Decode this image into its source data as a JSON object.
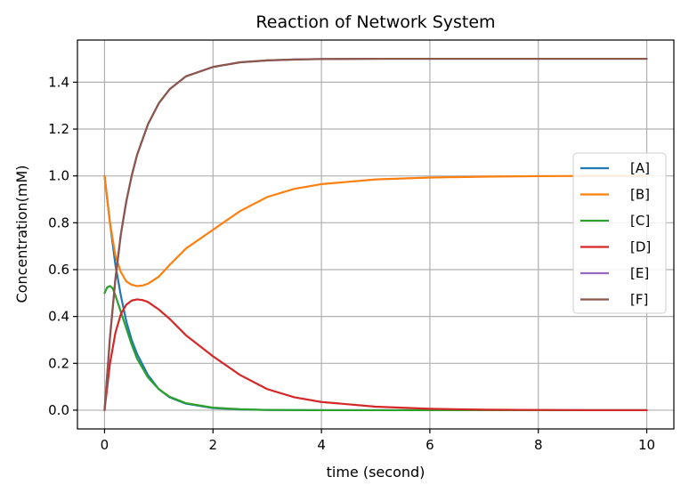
{
  "chart_data": {
    "type": "line",
    "title": "Reaction of Network System",
    "xlabel": "time (second)",
    "ylabel": "Concentration(mM)",
    "xlim": [
      -0.5,
      10.5
    ],
    "ylim": [
      -0.08,
      1.58
    ],
    "xticks": [
      0,
      2,
      4,
      6,
      8,
      10
    ],
    "xtick_labels": [
      "0",
      "2",
      "4",
      "6",
      "8",
      "10"
    ],
    "yticks": [
      0.0,
      0.2,
      0.4,
      0.6,
      0.8,
      1.0,
      1.2,
      1.4
    ],
    "ytick_labels": [
      "0.0",
      "0.2",
      "0.4",
      "0.6",
      "0.8",
      "1.0",
      "1.2",
      "1.4"
    ],
    "grid": true,
    "legend_position": "center-right",
    "series": [
      {
        "name": "[A]",
        "color": "#1f77b4",
        "x": [
          0,
          0.1,
          0.2,
          0.3,
          0.4,
          0.5,
          0.6,
          0.8,
          1.0,
          1.2,
          1.5,
          2.0,
          2.5,
          3.0,
          4.0,
          5.0,
          6.0,
          7.0,
          8.0,
          9.0,
          10.0
        ],
        "y": [
          1.0,
          0.8,
          0.62,
          0.49,
          0.38,
          0.3,
          0.24,
          0.15,
          0.09,
          0.055,
          0.028,
          0.009,
          0.003,
          0.001,
          0.0,
          0.0,
          0.0,
          0.0,
          0.0,
          0.0,
          0.0
        ]
      },
      {
        "name": "[B]",
        "color": "#ff7f0e",
        "x": [
          0,
          0.1,
          0.2,
          0.3,
          0.4,
          0.5,
          0.6,
          0.7,
          0.8,
          1.0,
          1.2,
          1.5,
          2.0,
          2.5,
          3.0,
          3.5,
          4.0,
          5.0,
          6.0,
          7.0,
          8.0,
          9.0,
          10.0
        ],
        "y": [
          1.0,
          0.8,
          0.66,
          0.59,
          0.55,
          0.535,
          0.53,
          0.532,
          0.54,
          0.57,
          0.62,
          0.69,
          0.77,
          0.85,
          0.91,
          0.945,
          0.965,
          0.985,
          0.993,
          0.997,
          0.999,
          1.0,
          1.0
        ]
      },
      {
        "name": "[C]",
        "color": "#2ca02c",
        "x": [
          0,
          0.05,
          0.1,
          0.15,
          0.2,
          0.3,
          0.4,
          0.5,
          0.6,
          0.8,
          1.0,
          1.2,
          1.5,
          2.0,
          2.5,
          3.0,
          4.0,
          5.0,
          6.0,
          8.0,
          10.0
        ],
        "y": [
          0.5,
          0.525,
          0.53,
          0.52,
          0.49,
          0.42,
          0.35,
          0.28,
          0.22,
          0.14,
          0.09,
          0.057,
          0.03,
          0.011,
          0.004,
          0.001,
          0.0,
          0.0,
          0.0,
          0.0,
          0.0
        ]
      },
      {
        "name": "[D]",
        "color": "#d62728",
        "x": [
          0,
          0.1,
          0.2,
          0.3,
          0.4,
          0.5,
          0.6,
          0.7,
          0.8,
          1.0,
          1.2,
          1.5,
          2.0,
          2.5,
          3.0,
          3.5,
          4.0,
          5.0,
          6.0,
          7.0,
          8.0,
          9.0,
          10.0
        ],
        "y": [
          0.0,
          0.2,
          0.33,
          0.41,
          0.45,
          0.468,
          0.473,
          0.47,
          0.462,
          0.43,
          0.39,
          0.32,
          0.23,
          0.15,
          0.09,
          0.055,
          0.035,
          0.015,
          0.006,
          0.002,
          0.001,
          0.0,
          0.0
        ]
      },
      {
        "name": "[E]",
        "color": "#9467bd",
        "x": [
          0,
          0.1,
          0.2,
          0.3,
          0.4,
          0.5,
          0.6,
          0.8,
          1.0,
          1.2,
          1.5,
          2.0,
          2.5,
          3.0,
          3.5,
          4.0,
          5.0,
          6.0,
          8.0,
          10.0
        ],
        "y": [
          0.0,
          0.31,
          0.56,
          0.75,
          0.89,
          1.0,
          1.09,
          1.22,
          1.31,
          1.37,
          1.425,
          1.465,
          1.485,
          1.493,
          1.497,
          1.499,
          1.5,
          1.5,
          1.5,
          1.5
        ]
      },
      {
        "name": "[F]",
        "color": "#8c564b",
        "x": [
          0,
          0.1,
          0.2,
          0.3,
          0.4,
          0.5,
          0.6,
          0.8,
          1.0,
          1.2,
          1.5,
          2.0,
          2.5,
          3.0,
          3.5,
          4.0,
          5.0,
          6.0,
          8.0,
          10.0
        ],
        "y": [
          0.0,
          0.31,
          0.56,
          0.75,
          0.89,
          1.0,
          1.09,
          1.22,
          1.31,
          1.37,
          1.425,
          1.465,
          1.485,
          1.493,
          1.497,
          1.499,
          1.5,
          1.5,
          1.5,
          1.5
        ]
      }
    ]
  }
}
